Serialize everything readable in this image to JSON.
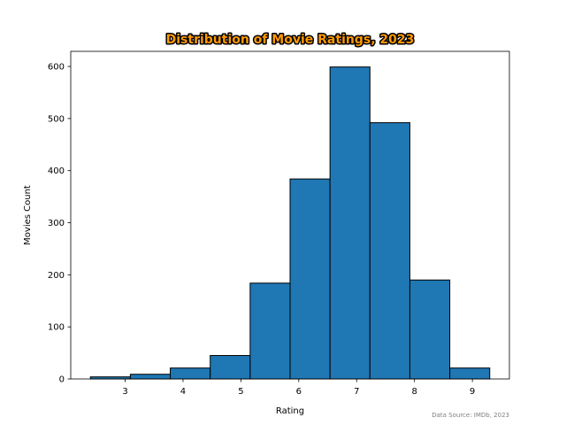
{
  "chart_data": {
    "type": "bar",
    "title": "Distribution of Movie Ratings, 2023",
    "xlabel": "Rating",
    "ylabel": "Movies Count",
    "source": "Data Source: IMDb, 2023",
    "bins": [
      {
        "start": 2.4,
        "end": 3.09,
        "count": 4
      },
      {
        "start": 3.09,
        "end": 3.78,
        "count": 9
      },
      {
        "start": 3.78,
        "end": 4.47,
        "count": 21
      },
      {
        "start": 4.47,
        "end": 5.16,
        "count": 45
      },
      {
        "start": 5.16,
        "end": 5.85,
        "count": 184
      },
      {
        "start": 5.85,
        "end": 6.54,
        "count": 384
      },
      {
        "start": 6.54,
        "end": 7.23,
        "count": 599
      },
      {
        "start": 7.23,
        "end": 7.92,
        "count": 492
      },
      {
        "start": 7.92,
        "end": 8.61,
        "count": 190
      },
      {
        "start": 8.61,
        "end": 9.3,
        "count": 21
      }
    ],
    "xlim": [
      2.06,
      9.64
    ],
    "ylim": [
      0,
      629
    ],
    "xticks": [
      3,
      4,
      5,
      6,
      7,
      8,
      9
    ],
    "yticks": [
      0,
      100,
      200,
      300,
      400,
      500,
      600
    ],
    "grid": false,
    "legend": "none",
    "bar_color": "#1f77b4",
    "edge_color": "#000000",
    "title_color": "#ff9900",
    "title_outline_color": "#000000",
    "source_color": "#808080"
  }
}
